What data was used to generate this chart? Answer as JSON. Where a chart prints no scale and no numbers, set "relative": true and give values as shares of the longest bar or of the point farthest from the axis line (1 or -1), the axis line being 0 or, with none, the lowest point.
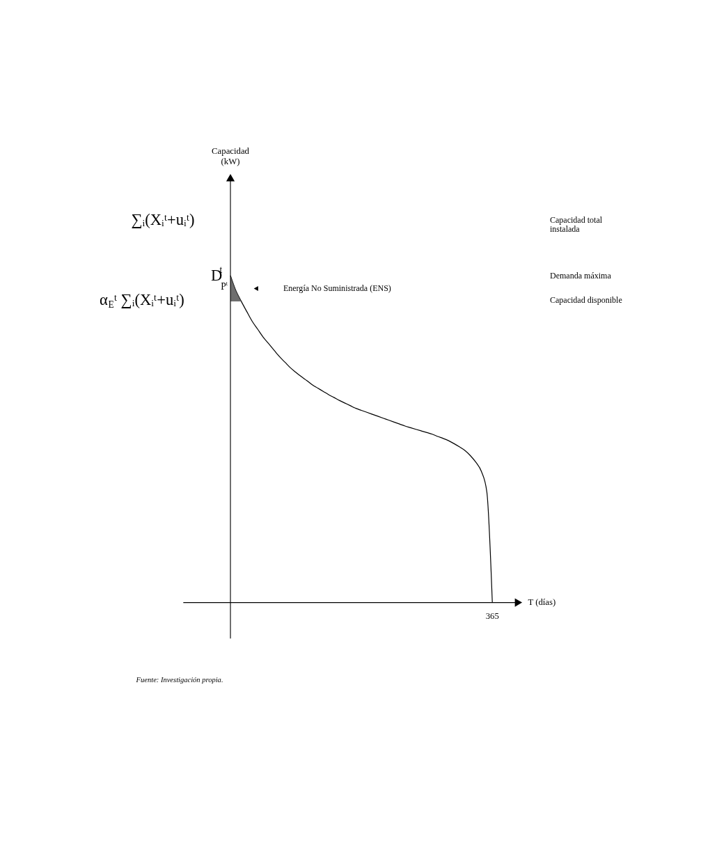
{
  "chart_data": {
    "type": "line",
    "relative": true,
    "xlabel": "T (días)",
    "categories": [
      null,
      null,
      null,
      null,
      null,
      null,
      null,
      null,
      null,
      null,
      null,
      null,
      null,
      null,
      null,
      null,
      null,
      null,
      null,
      null,
      null,
      null,
      null,
      null,
      null,
      null,
      null,
      null,
      null,
      null,
      null,
      null,
      null,
      null,
      null,
      null,
      null,
      null,
      null,
      null,
      null,
      null,
      null,
      null,
      null,
      null,
      null,
      null,
      null
    ],
    "series": [
      {
        "color": "#000000",
        "values": [
          1.0,
          0.954,
          0.921,
          0.89,
          0.86,
          0.836,
          0.812,
          0.792,
          0.772,
          0.752,
          0.735,
          0.718,
          0.704,
          0.691,
          0.679,
          0.666,
          0.656,
          0.646,
          0.636,
          0.627,
          0.618,
          0.61,
          0.602,
          0.594,
          0.588,
          0.582,
          0.576,
          0.57,
          0.564,
          0.558,
          0.552,
          0.546,
          0.54,
          0.535,
          0.53,
          0.525,
          0.52,
          0.515,
          0.508,
          0.502,
          0.495,
          0.486,
          0.476,
          0.465,
          0.449,
          0.429,
          0.401,
          0.338,
          0
        ]
      }
    ],
    "annotations": [
      "∑ᵢ(Xᵢᵗ+uᵢᵗ)",
      "D$^{t}$",
      "α$_{E}$ᵗ ∑ᵢ(Xᵢᵗ+uᵢᵗ)",
      "P$^{t}$",
      "Capacidad total instalada",
      "Demanda máxima",
      "Capacidad disponible",
      "365",
      "Fuente: Investigación propia.",
      "Capacidad (kW)",
      "Energía No Suministrada (ENS)"
    ]
  }
}
